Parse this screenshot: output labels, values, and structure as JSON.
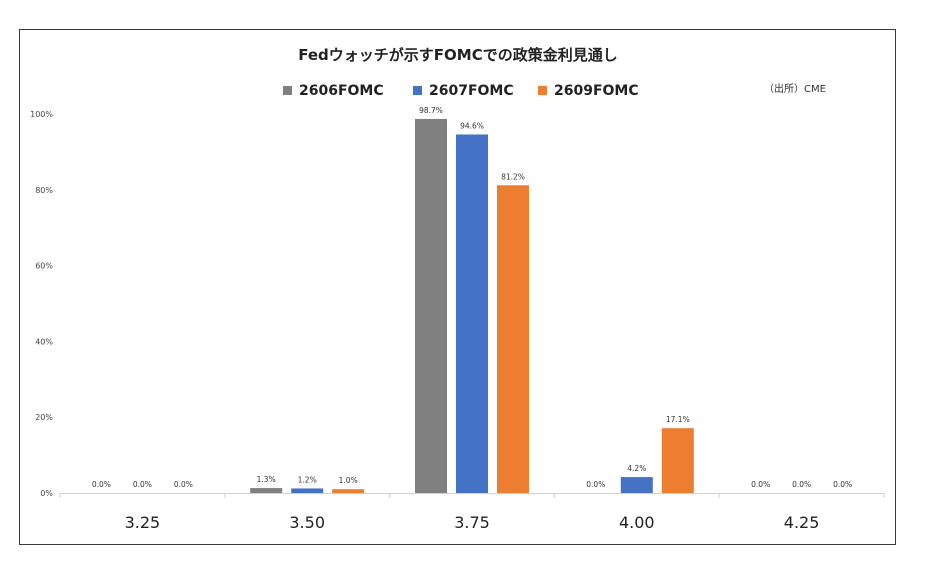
{
  "chart_data": {
    "type": "bar",
    "title": "Fedウォッチが示すFOMCでの政策金利見通し",
    "source": "（出所）CME",
    "categories": [
      "3.25",
      "3.50",
      "3.75",
      "4.00",
      "4.25"
    ],
    "series": [
      {
        "name": "2606FOMC",
        "color": "#808080",
        "values": [
          0.0,
          1.3,
          98.7,
          0.0,
          0.0
        ],
        "labels": [
          "0.0%",
          "1.3%",
          "98.7%",
          "0.0%",
          "0.0%"
        ]
      },
      {
        "name": "2607FOMC",
        "color": "#4472c4",
        "values": [
          0.0,
          1.2,
          94.6,
          4.2,
          0.0
        ],
        "labels": [
          "0.0%",
          "1.2%",
          "94.6%",
          "4.2%",
          "0.0%"
        ]
      },
      {
        "name": "2609FOMC",
        "color": "#ed7d31",
        "values": [
          0.0,
          1.0,
          81.2,
          17.1,
          0.0
        ],
        "labels": [
          "0.0%",
          "1.0%",
          "81.2%",
          "17.1%",
          "0.0%"
        ]
      }
    ],
    "ylim": [
      0,
      100
    ],
    "yticks": [
      0,
      20,
      40,
      60,
      80,
      100
    ],
    "ytick_labels": [
      "0%",
      "20%",
      "40%",
      "60%",
      "80%",
      "100%"
    ],
    "grid": false,
    "legend_position": "top"
  }
}
